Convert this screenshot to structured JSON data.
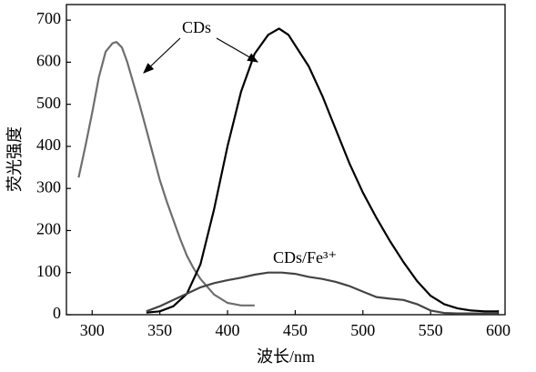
{
  "chart_data": {
    "type": "line",
    "x_label": "波长/nm",
    "y_label": "荧光强度",
    "annotations": [
      {
        "text": "CDs"
      },
      {
        "text": "CDs/Fe³⁺"
      }
    ],
    "xlim": [
      281,
      605
    ],
    "ylim": [
      0,
      737
    ],
    "xticks": [
      300,
      350,
      400,
      450,
      500,
      550,
      600
    ],
    "yticks": [
      0,
      100,
      200,
      300,
      400,
      500,
      600,
      700
    ],
    "grid": false,
    "series": [
      {
        "color": "#6e6e6e",
        "x": [
          290,
          295,
          300,
          305,
          310,
          315,
          318,
          322,
          326,
          330,
          335,
          340,
          345,
          350,
          355,
          360,
          365,
          370,
          375,
          380,
          390,
          400,
          410,
          420
        ],
        "values": [
          326,
          400,
          480,
          565,
          625,
          645,
          648,
          635,
          600,
          555,
          500,
          440,
          380,
          320,
          270,
          225,
          180,
          140,
          110,
          85,
          48,
          28,
          22,
          22
        ]
      },
      {
        "color": "#000000",
        "x": [
          340,
          350,
          360,
          370,
          380,
          390,
          400,
          410,
          420,
          430,
          438,
          445,
          450,
          460,
          470,
          480,
          490,
          500,
          510,
          520,
          530,
          540,
          550,
          560,
          570,
          580,
          590,
          600
        ],
        "values": [
          5,
          8,
          20,
          50,
          120,
          250,
          400,
          530,
          620,
          665,
          680,
          665,
          640,
          590,
          520,
          440,
          360,
          290,
          230,
          175,
          125,
          80,
          45,
          25,
          15,
          10,
          8,
          8
        ]
      },
      {
        "color": "#444444",
        "x": [
          340,
          350,
          360,
          370,
          380,
          390,
          400,
          410,
          420,
          430,
          440,
          450,
          460,
          470,
          480,
          490,
          500,
          510,
          520,
          530,
          540,
          550,
          560,
          570,
          580,
          590,
          600
        ],
        "values": [
          8,
          20,
          35,
          50,
          65,
          75,
          82,
          88,
          95,
          100,
          100,
          97,
          90,
          85,
          78,
          68,
          55,
          42,
          38,
          35,
          25,
          10,
          4,
          3,
          3,
          3,
          3
        ]
      }
    ]
  }
}
